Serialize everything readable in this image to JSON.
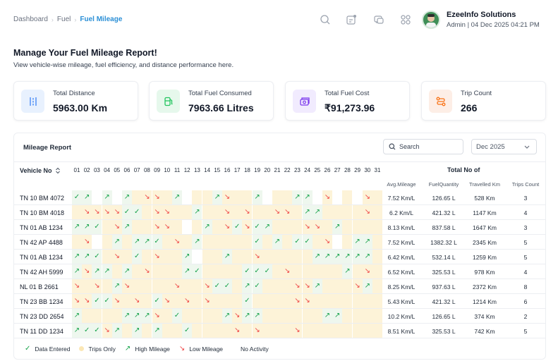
{
  "breadcrumb": [
    "Dashboard",
    "Fuel",
    "Fuel Mileage"
  ],
  "profile": {
    "name": "EzeeInfo Solutions",
    "role": "Admin | 04 Dec 2025 04:21 PM"
  },
  "page": {
    "title": "Manage Your Fuel Mileage Report!",
    "subtitle": "View vehicle-wise mileage, fuel efficiency, and distance performance here."
  },
  "cards": [
    {
      "label": "Total Distance",
      "value": "5963.00 Km",
      "icon": "distance-icon",
      "color": "#3b82f6"
    },
    {
      "label": "Total Fuel Consumed",
      "value": "7963.66 Litres",
      "icon": "fuel-pump-icon",
      "color": "#22c55e"
    },
    {
      "label": "Total Fuel Cost",
      "value": "₹91,273.96",
      "icon": "cash-icon",
      "color": "#8b5cf6"
    },
    {
      "label": "Trip Count",
      "value": "266",
      "icon": "route-icon",
      "color": "#f97316"
    }
  ],
  "report": {
    "title": "Mileage Report",
    "search_placeholder": "Search",
    "month": "Dec 2025",
    "vehicle_header": "Vehicle No",
    "total_header": "Total No of",
    "days": [
      "01",
      "02",
      "03",
      "04",
      "05",
      "06",
      "07",
      "08",
      "09",
      "10",
      "11",
      "12",
      "13",
      "14",
      "15",
      "16",
      "17",
      "18",
      "19",
      "20",
      "21",
      "22",
      "23",
      "24",
      "25",
      "26",
      "27",
      "28",
      "29",
      "30",
      "31"
    ],
    "columns": [
      "Avg.Mileage",
      "FuelQuantity",
      "Travelled Km",
      "Trips Count"
    ],
    "rows": [
      {
        "vehicle": "TN 10 BM 4072",
        "cells": "DHNHNHTLLTHNTTHLTTHNTTHHNLNTNLT",
        "avg": "7.52 Km/L",
        "fuel": "126.65 L",
        "km": "528 Km",
        "trips": "3"
      },
      {
        "vehicle": "TN 10 BM 4018",
        "cells": "TLLLLDDTLLTTHTTLTLTTLLTHHTTTTLT",
        "avg": "6.2 Km/L",
        "fuel": "421.32 L",
        "km": "1147 Km",
        "trips": "4"
      },
      {
        "vehicle": "TN 01 AB 1234",
        "cells": "HHDTLHTTLLTNTHTLDLDHTTTLLTHTTTT",
        "avg": "8.13 Km/L",
        "fuel": "837.58 L",
        "km": "1647 Km",
        "trips": "3"
      },
      {
        "vehicle": "TN 42 AP 4488",
        "cells": "TLNTHTHHDTLTHTTTTTDTHTDDTLNTHHT",
        "avg": "7.52 Km/L",
        "fuel": "1382.32 L",
        "km": "2345 Km",
        "trips": "5"
      },
      {
        "vehicle": "TN 01 AB 1234",
        "cells": "HHDTLTDTLTTHNTTHTTLTTTTTHHHHHHT",
        "avg": "6.42 Km/L",
        "fuel": "532.14 L",
        "km": "1259 Km",
        "trips": "5"
      },
      {
        "vehicle": "TN 42 AH 5999",
        "cells": "HLHHTHTLTTTHDTTTTDDDTLTTTTTHTLT",
        "avg": "6.52 Km/L",
        "fuel": "325.53 L",
        "km": "978 Km",
        "trips": "4"
      },
      {
        "vehicle": "NL 01 B 2661",
        "cells": "LTLTHLTTTTLTTLDDTHDTTTLLHTTTLHT",
        "avg": "8.25 Km/L",
        "fuel": "937.63 L",
        "km": "2372 Km",
        "trips": "8"
      },
      {
        "vehicle": "TN 23 BB 1234",
        "cells": "LLDDLTLTDLTLTLTTTDTTTTLLTTTTTTT",
        "avg": "5.43 Km/L",
        "fuel": "421.32 L",
        "km": "1214 Km",
        "trips": "6"
      },
      {
        "vehicle": "TN 23 DD 2654",
        "cells": "HTTTTHHHLTDTTTTHLHHTTTTTTHHTTTT",
        "avg": "10.2 Km/L",
        "fuel": "126.65 L",
        "km": "374 Km",
        "trips": "2"
      },
      {
        "vehicle": "TN 11 DD 1234",
        "cells": "HDDLHTHTHTTDTTTTLTLTTTLTTTTTTTT",
        "avg": "8.51 Km/L",
        "fuel": "325.53 L",
        "km": "742 Km",
        "trips": "5"
      }
    ],
    "legend": [
      {
        "label": "Data Entered",
        "key": "D"
      },
      {
        "label": "Trips Only",
        "key": "T"
      },
      {
        "label": "High Mileage",
        "key": "H"
      },
      {
        "label": "Low Mileage",
        "key": "L"
      },
      {
        "label": "No Activity",
        "key": "N"
      }
    ]
  }
}
